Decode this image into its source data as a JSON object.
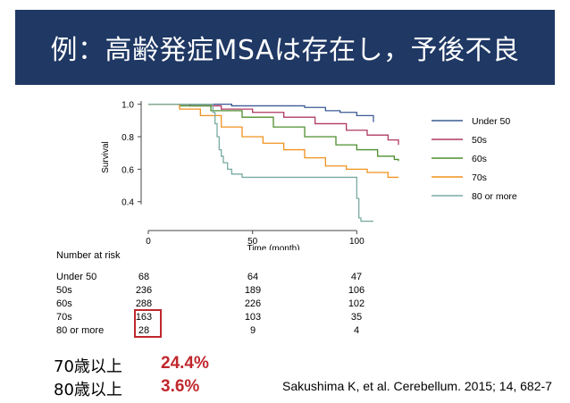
{
  "header": {
    "title": "例：高齢発症MSAは存在し，予後不良"
  },
  "chart_data": {
    "type": "line",
    "xlabel": "Time (month)",
    "ylabel": "Survival",
    "xlim": [
      0,
      120
    ],
    "ylim": [
      0.25,
      1.02
    ],
    "x_ticks": [
      "0",
      "50",
      "100"
    ],
    "x_tick_values": [
      0,
      50,
      100
    ],
    "y_ticks": [
      "1.0",
      "0.8",
      "0.6",
      "0.4"
    ],
    "y_tick_values": [
      1.0,
      0.8,
      0.6,
      0.4
    ],
    "grid": false,
    "legend_position": "right",
    "series": [
      {
        "name": "Under 50",
        "color": "#3b5b94",
        "points": [
          [
            0,
            1.0
          ],
          [
            35,
            1.0
          ],
          [
            40,
            0.99
          ],
          [
            60,
            0.99
          ],
          [
            75,
            0.98
          ],
          [
            85,
            0.96
          ],
          [
            92,
            0.95
          ],
          [
            100,
            0.93
          ],
          [
            108,
            0.91
          ],
          [
            108,
            0.89
          ]
        ]
      },
      {
        "name": "50s",
        "color": "#b03a62",
        "points": [
          [
            0,
            1.0
          ],
          [
            20,
            0.99
          ],
          [
            35,
            0.97
          ],
          [
            50,
            0.95
          ],
          [
            65,
            0.92
          ],
          [
            80,
            0.88
          ],
          [
            95,
            0.84
          ],
          [
            105,
            0.81
          ],
          [
            115,
            0.78
          ],
          [
            120,
            0.75
          ]
        ]
      },
      {
        "name": "60s",
        "color": "#4e8f2f",
        "points": [
          [
            0,
            1.0
          ],
          [
            15,
            0.99
          ],
          [
            30,
            0.96
          ],
          [
            45,
            0.92
          ],
          [
            60,
            0.86
          ],
          [
            75,
            0.8
          ],
          [
            90,
            0.75
          ],
          [
            100,
            0.72
          ],
          [
            110,
            0.68
          ],
          [
            118,
            0.66
          ],
          [
            120,
            0.65
          ]
        ]
      },
      {
        "name": "70s",
        "color": "#f0921e",
        "points": [
          [
            0,
            1.0
          ],
          [
            15,
            0.97
          ],
          [
            25,
            0.93
          ],
          [
            35,
            0.86
          ],
          [
            45,
            0.8
          ],
          [
            55,
            0.76
          ],
          [
            65,
            0.72
          ],
          [
            75,
            0.67
          ],
          [
            85,
            0.62
          ],
          [
            95,
            0.6
          ],
          [
            105,
            0.58
          ],
          [
            115,
            0.55
          ],
          [
            120,
            0.55
          ]
        ]
      },
      {
        "name": "80 or more",
        "color": "#7aaba2",
        "points": [
          [
            0,
            1.0
          ],
          [
            28,
            1.0
          ],
          [
            31,
            0.95
          ],
          [
            32,
            0.88
          ],
          [
            33,
            0.8
          ],
          [
            34,
            0.72
          ],
          [
            35,
            0.68
          ],
          [
            36,
            0.64
          ],
          [
            38,
            0.6
          ],
          [
            40,
            0.57
          ],
          [
            45,
            0.55
          ],
          [
            60,
            0.55
          ],
          [
            98,
            0.55
          ],
          [
            100,
            0.42
          ],
          [
            101,
            0.3
          ],
          [
            102,
            0.28
          ],
          [
            108,
            0.28
          ]
        ]
      }
    ]
  },
  "risk_table": {
    "title": "Number at risk",
    "rows": [
      {
        "label": "Under 50",
        "values": [
          "68",
          "64",
          "47"
        ]
      },
      {
        "label": "50s",
        "values": [
          "236",
          "189",
          "106"
        ]
      },
      {
        "label": "60s",
        "values": [
          "288",
          "226",
          "102"
        ]
      },
      {
        "label": "70s",
        "values": [
          "163",
          "103",
          "35"
        ]
      },
      {
        "label": "80 or more",
        "values": [
          "28",
          "9",
          "4"
        ]
      }
    ]
  },
  "stats": [
    {
      "label": "70歳以上",
      "value": "24.4%"
    },
    {
      "label": "80歳以上",
      "value": "3.6%"
    }
  ],
  "citation": "Sakushima K, et al. Cerebellum. 2015; 14, 682-7"
}
